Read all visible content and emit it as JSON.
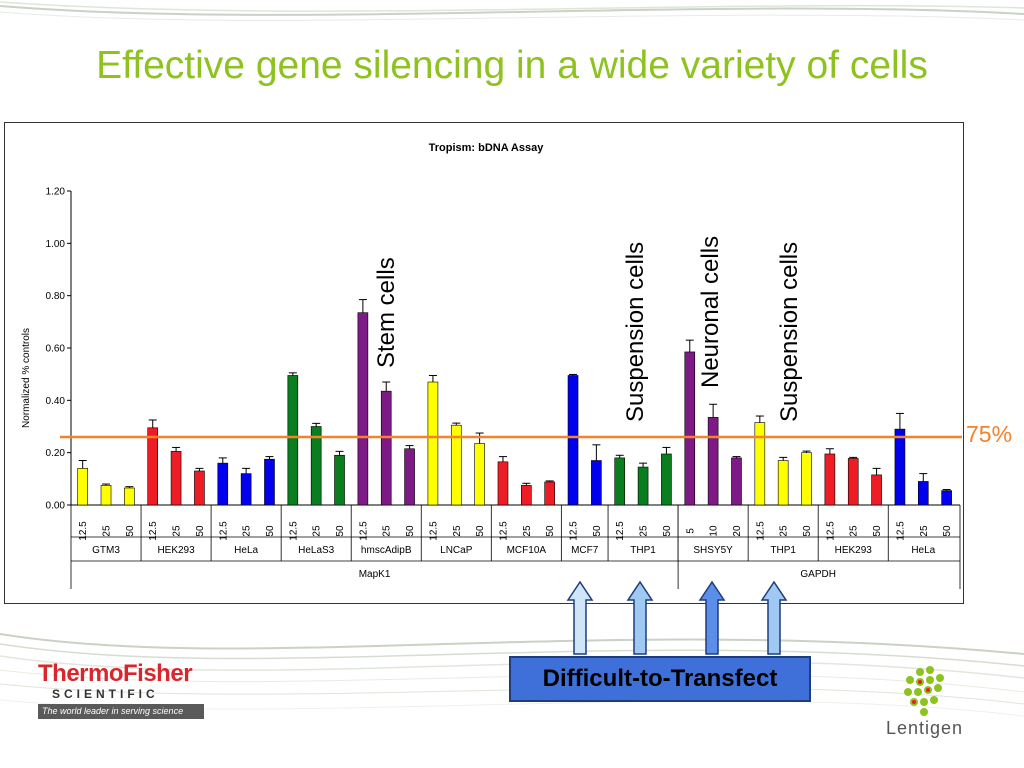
{
  "slide_title": "Effective gene silencing in a wide variety of cells",
  "callouts": {
    "stem": "Stem cells",
    "suspension_1": "Suspension cells",
    "neuronal": "Neuronal cells",
    "suspension_2": "Suspension cells"
  },
  "threshold_label": "75%",
  "difficult_label": "Difficult-to-Transfect",
  "logos": {
    "thermo_name": "ThermoFisher",
    "thermo_sub": "SCIENTIFIC",
    "thermo_tagline": "The world leader in serving science",
    "lentigen": "Lentigen"
  },
  "colors": {
    "title": "#8dc21f",
    "threshold": "#f4822a",
    "yellow": "#ffff00",
    "red": "#ee1c25",
    "blue": "#0000ee",
    "green": "#0a7d1e",
    "purple": "#7d1a86"
  },
  "chart_data": {
    "type": "bar",
    "title": "Tropism:  bDNA Assay",
    "ylabel": "Normalized % controls",
    "ylim": [
      0,
      1.2
    ],
    "yticks": [
      "0.00",
      "0.20",
      "0.40",
      "0.60",
      "0.80",
      "1.00",
      "1.20"
    ],
    "threshold": 0.26,
    "groups": [
      {
        "cell": "GTM3",
        "gene": "MapK1",
        "color": "yellow",
        "bars": [
          {
            "dose": "12.5",
            "value": 0.14,
            "err": 0.03
          },
          {
            "dose": "25",
            "value": 0.075,
            "err": 0.005
          },
          {
            "dose": "50",
            "value": 0.065,
            "err": 0.005
          }
        ]
      },
      {
        "cell": "HEK293",
        "gene": "MapK1",
        "color": "red",
        "bars": [
          {
            "dose": "12.5",
            "value": 0.295,
            "err": 0.03
          },
          {
            "dose": "25",
            "value": 0.205,
            "err": 0.015
          },
          {
            "dose": "50",
            "value": 0.13,
            "err": 0.01
          }
        ]
      },
      {
        "cell": "HeLa",
        "gene": "MapK1",
        "color": "blue",
        "bars": [
          {
            "dose": "12.5",
            "value": 0.16,
            "err": 0.02
          },
          {
            "dose": "25",
            "value": 0.12,
            "err": 0.02
          },
          {
            "dose": "50",
            "value": 0.175,
            "err": 0.01
          }
        ]
      },
      {
        "cell": "HeLaS3",
        "gene": "MapK1",
        "color": "green",
        "bars": [
          {
            "dose": "12.5",
            "value": 0.495,
            "err": 0.01
          },
          {
            "dose": "25",
            "value": 0.3,
            "err": 0.012
          },
          {
            "dose": "50",
            "value": 0.19,
            "err": 0.015
          }
        ]
      },
      {
        "cell": "hmscAdipB",
        "gene": "MapK1",
        "color": "purple",
        "bars": [
          {
            "dose": "12.5",
            "value": 0.735,
            "err": 0.05
          },
          {
            "dose": "25",
            "value": 0.435,
            "err": 0.035
          },
          {
            "dose": "50",
            "value": 0.215,
            "err": 0.012
          }
        ]
      },
      {
        "cell": "LNCaP",
        "gene": "MapK1",
        "color": "yellow",
        "bars": [
          {
            "dose": "12.5",
            "value": 0.47,
            "err": 0.025
          },
          {
            "dose": "25",
            "value": 0.305,
            "err": 0.008
          },
          {
            "dose": "50",
            "value": 0.235,
            "err": 0.04
          }
        ]
      },
      {
        "cell": "MCF10A",
        "gene": "MapK1",
        "color": "red",
        "bars": [
          {
            "dose": "12.5",
            "value": 0.165,
            "err": 0.02
          },
          {
            "dose": "25",
            "value": 0.075,
            "err": 0.008
          },
          {
            "dose": "50",
            "value": 0.088,
            "err": 0.004
          }
        ]
      },
      {
        "cell": "MCF7",
        "gene": "MapK1",
        "color": "blue",
        "bars": [
          {
            "dose": "12.5",
            "value": 0.495,
            "err": 0.004
          },
          {
            "dose": "50",
            "value": 0.17,
            "err": 0.06
          }
        ]
      },
      {
        "cell": "THP1",
        "gene": "MapK1",
        "color": "green",
        "bars": [
          {
            "dose": "12.5",
            "value": 0.18,
            "err": 0.01
          },
          {
            "dose": "25",
            "value": 0.145,
            "err": 0.015
          },
          {
            "dose": "50",
            "value": 0.195,
            "err": 0.025
          }
        ]
      },
      {
        "cell": "SHSY5Y",
        "gene": "GAPDH",
        "color": "purple",
        "bars": [
          {
            "dose": "5",
            "value": 0.585,
            "err": 0.045
          },
          {
            "dose": "10",
            "value": 0.335,
            "err": 0.05
          },
          {
            "dose": "20",
            "value": 0.18,
            "err": 0.005
          }
        ]
      },
      {
        "cell": "THP1",
        "gene": "GAPDH",
        "color": "yellow",
        "bars": [
          {
            "dose": "12.5",
            "value": 0.315,
            "err": 0.025
          },
          {
            "dose": "25",
            "value": 0.17,
            "err": 0.012
          },
          {
            "dose": "50",
            "value": 0.2,
            "err": 0.006
          }
        ]
      },
      {
        "cell": "HEK293",
        "gene": "GAPDH",
        "color": "red",
        "bars": [
          {
            "dose": "12.5",
            "value": 0.195,
            "err": 0.02
          },
          {
            "dose": "25",
            "value": 0.178,
            "err": 0.004
          },
          {
            "dose": "50",
            "value": 0.115,
            "err": 0.025
          }
        ]
      },
      {
        "cell": "HeLa",
        "gene": "GAPDH",
        "color": "blue",
        "bars": [
          {
            "dose": "12.5",
            "value": 0.29,
            "err": 0.06
          },
          {
            "dose": "25",
            "value": 0.09,
            "err": 0.03
          },
          {
            "dose": "50",
            "value": 0.055,
            "err": 0.004
          }
        ]
      }
    ],
    "gene_groups": [
      "MapK1",
      "GAPDH"
    ],
    "grid": false,
    "legend": "none"
  }
}
